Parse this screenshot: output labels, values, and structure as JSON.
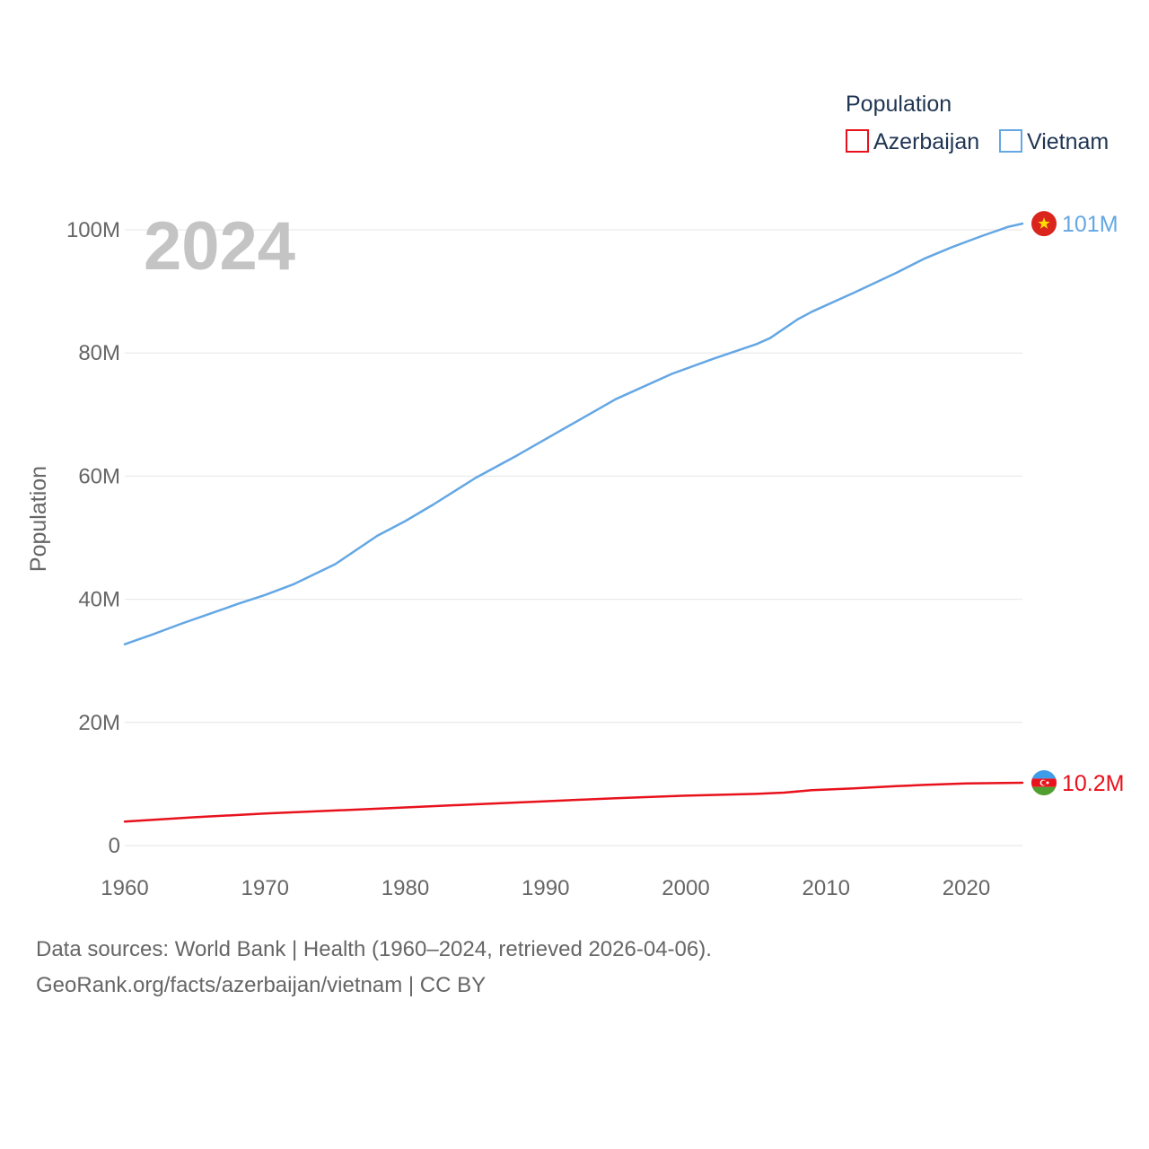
{
  "chart_data": {
    "type": "line",
    "legend_title": "Population",
    "legend_position": "top-right",
    "ylabel": "Population",
    "year_watermark": "2024",
    "ylim": [
      0,
      105000000
    ],
    "xlim": [
      1960,
      2024
    ],
    "x_ticks": [
      1960,
      1970,
      1980,
      1990,
      2000,
      2010,
      2020
    ],
    "x_tick_labels": [
      "1960",
      "1970",
      "1980",
      "1990",
      "2000",
      "2010",
      "2020"
    ],
    "y_ticks": [
      0,
      20000000,
      40000000,
      60000000,
      80000000,
      100000000
    ],
    "y_tick_labels": [
      "0",
      "20M",
      "40M",
      "60M",
      "80M",
      "100M"
    ],
    "series": [
      {
        "name": "Azerbaijan",
        "color": "#e8111c",
        "end_label": "10.2M",
        "flag": "azerbaijan-flag",
        "x": [
          1960,
          1965,
          1970,
          1975,
          1980,
          1985,
          1990,
          1995,
          2000,
          2005,
          2007,
          2009,
          2012,
          2015,
          2017,
          2020,
          2022,
          2024
        ],
        "values": [
          3900000,
          4600000,
          5200000,
          5700000,
          6200000,
          6700000,
          7200000,
          7700000,
          8100000,
          8400000,
          8600000,
          9000000,
          9300000,
          9650000,
          9850000,
          10100000,
          10150000,
          10200000
        ]
      },
      {
        "name": "Vietnam",
        "color": "#64a7e4",
        "end_label": "101M",
        "flag": "vietnam-flag",
        "x": [
          1960,
          1962,
          1964,
          1966,
          1968,
          1970,
          1972,
          1975,
          1978,
          1980,
          1982,
          1985,
          1988,
          1990,
          1992,
          1995,
          1999,
          2002,
          2005,
          2006,
          2008,
          2009,
          2012,
          2015,
          2017,
          2019,
          2021,
          2023,
          2024
        ],
        "values": [
          32700000,
          34300000,
          36000000,
          37600000,
          39200000,
          40700000,
          42400000,
          45700000,
          50300000,
          52700000,
          55400000,
          59700000,
          63400000,
          66000000,
          68600000,
          72500000,
          76600000,
          79100000,
          81400000,
          82400000,
          85500000,
          86700000,
          89800000,
          93000000,
          95300000,
          97200000,
          98900000,
          100500000,
          101000000
        ]
      }
    ]
  },
  "footer": {
    "line1": "Data sources: World Bank | Health (1960–2024, retrieved 2026-04-06).",
    "line2": "GeoRank.org/facts/azerbaijan/vietnam | CC BY"
  }
}
